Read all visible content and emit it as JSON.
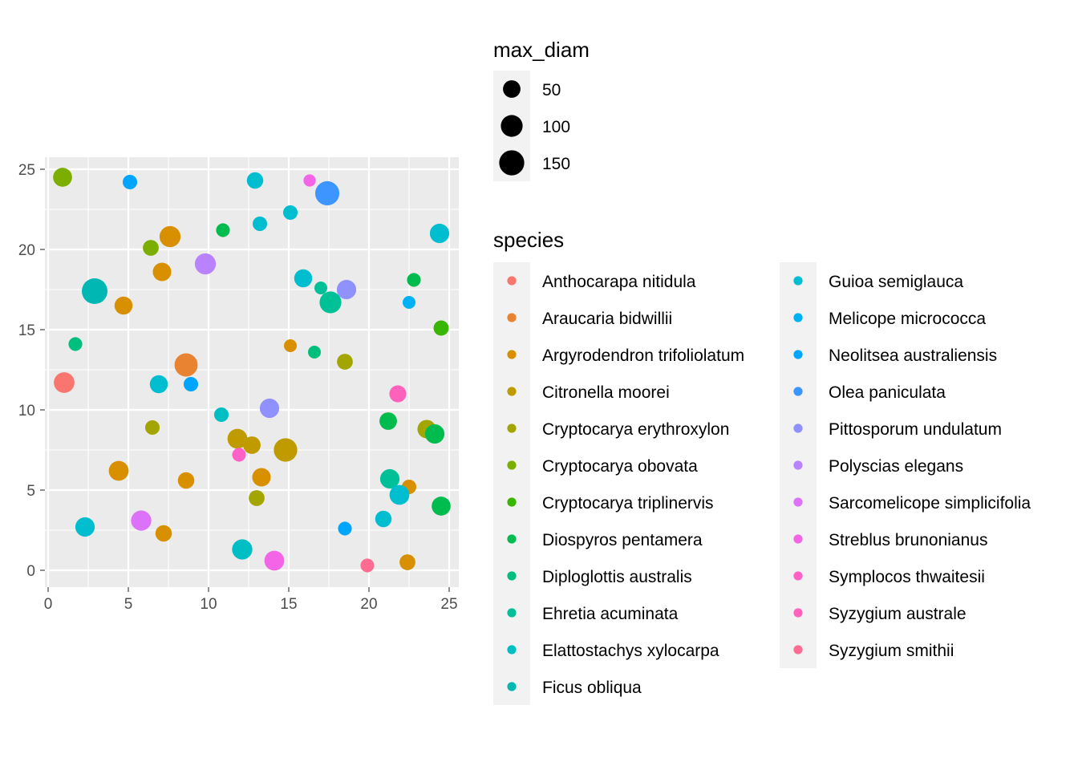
{
  "chart_data": {
    "type": "scatter",
    "xlabel": "",
    "ylabel": "",
    "xlim": [
      0,
      25
    ],
    "ylim": [
      0,
      25
    ],
    "x_ticks": [
      0,
      5,
      10,
      15,
      20,
      25
    ],
    "y_ticks": [
      0,
      5,
      10,
      15,
      20,
      25
    ],
    "grid": true,
    "size_legend": {
      "title": "max_diam",
      "breaks": [
        50,
        100,
        150
      ],
      "labels": [
        "50",
        "100",
        "150"
      ]
    },
    "color_legend": {
      "title": "species",
      "placement": "right"
    },
    "series": [
      {
        "name": "Anthocarapa nitidula",
        "color": "#F8766D",
        "points": [
          {
            "x": 1.0,
            "y": 11.7,
            "size": 85
          }
        ]
      },
      {
        "name": "Araucaria bidwillii",
        "color": "#EA8331",
        "points": [
          {
            "x": 8.6,
            "y": 12.8,
            "size": 120
          }
        ]
      },
      {
        "name": "Argyrodendron trifoliolatum",
        "color": "#D89000",
        "points": [
          {
            "x": 7.6,
            "y": 20.8,
            "size": 90
          },
          {
            "x": 7.1,
            "y": 18.6,
            "size": 60
          },
          {
            "x": 4.7,
            "y": 16.5,
            "size": 55
          },
          {
            "x": 4.4,
            "y": 6.2,
            "size": 75
          },
          {
            "x": 8.6,
            "y": 5.6,
            "size": 40
          },
          {
            "x": 7.2,
            "y": 2.3,
            "size": 40
          },
          {
            "x": 13.3,
            "y": 5.8,
            "size": 60
          },
          {
            "x": 15.1,
            "y": 14.0,
            "size": 15
          },
          {
            "x": 22.5,
            "y": 5.2,
            "size": 25
          },
          {
            "x": 22.4,
            "y": 0.5,
            "size": 35
          }
        ]
      },
      {
        "name": "Citronella moorei",
        "color": "#C09B00",
        "points": [
          {
            "x": 14.8,
            "y": 7.5,
            "size": 125
          },
          {
            "x": 11.8,
            "y": 8.2,
            "size": 75
          },
          {
            "x": 12.7,
            "y": 7.8,
            "size": 50
          }
        ]
      },
      {
        "name": "Cryptocarya erythroxylon",
        "color": "#A3A500",
        "points": [
          {
            "x": 18.5,
            "y": 13.0,
            "size": 35
          },
          {
            "x": 6.5,
            "y": 8.9,
            "size": 25
          },
          {
            "x": 13.0,
            "y": 4.5,
            "size": 35
          },
          {
            "x": 23.6,
            "y": 8.8,
            "size": 60
          }
        ]
      },
      {
        "name": "Cryptocarya obovata",
        "color": "#7CAE00",
        "points": [
          {
            "x": 0.9,
            "y": 24.5,
            "size": 65
          },
          {
            "x": 6.4,
            "y": 20.1,
            "size": 35
          }
        ]
      },
      {
        "name": "Cryptocarya triplinervis",
        "color": "#39B600",
        "points": [
          {
            "x": 24.5,
            "y": 15.1,
            "size": 30
          }
        ]
      },
      {
        "name": "Diospyros pentamera",
        "color": "#00BB4E",
        "points": [
          {
            "x": 24.1,
            "y": 8.5,
            "size": 70
          },
          {
            "x": 21.2,
            "y": 9.3,
            "size": 50
          },
          {
            "x": 24.5,
            "y": 4.0,
            "size": 65
          },
          {
            "x": 22.8,
            "y": 18.1,
            "size": 20
          },
          {
            "x": 10.9,
            "y": 21.2,
            "size": 20
          }
        ]
      },
      {
        "name": "Diploglottis australis",
        "color": "#00BF7D",
        "points": [
          {
            "x": 1.7,
            "y": 14.1,
            "size": 20
          },
          {
            "x": 16.6,
            "y": 13.6,
            "size": 15
          }
        ]
      },
      {
        "name": "Ehretia acuminata",
        "color": "#00C097",
        "points": [
          {
            "x": 17.6,
            "y": 16.7,
            "size": 100
          },
          {
            "x": 21.3,
            "y": 5.7,
            "size": 70
          },
          {
            "x": 17.0,
            "y": 17.6,
            "size": 15
          }
        ]
      },
      {
        "name": "Elattostachys xylocarpa",
        "color": "#00BFC4",
        "points": [
          {
            "x": 12.1,
            "y": 1.3,
            "size": 80
          },
          {
            "x": 10.8,
            "y": 9.7,
            "size": 25
          }
        ]
      },
      {
        "name": "Ficus obliqua",
        "color": "#00B7B4",
        "points": [
          {
            "x": 2.9,
            "y": 17.4,
            "size": 160
          }
        ]
      },
      {
        "name": "Guioa semiglauca",
        "color": "#00BDD0",
        "points": [
          {
            "x": 6.9,
            "y": 11.6,
            "size": 55
          },
          {
            "x": 2.3,
            "y": 2.7,
            "size": 70
          },
          {
            "x": 12.9,
            "y": 24.3,
            "size": 40
          },
          {
            "x": 13.2,
            "y": 21.6,
            "size": 25
          },
          {
            "x": 15.1,
            "y": 22.3,
            "size": 25
          },
          {
            "x": 15.9,
            "y": 18.2,
            "size": 55
          },
          {
            "x": 20.9,
            "y": 3.2,
            "size": 40
          },
          {
            "x": 21.9,
            "y": 4.7,
            "size": 75
          },
          {
            "x": 24.4,
            "y": 21.0,
            "size": 70
          }
        ]
      },
      {
        "name": "Melicope micrococca",
        "color": "#00B2F3",
        "points": [
          {
            "x": 22.5,
            "y": 16.7,
            "size": 15
          }
        ]
      },
      {
        "name": "Neolitsea australiensis",
        "color": "#00A5FF",
        "points": [
          {
            "x": 5.1,
            "y": 24.2,
            "size": 25
          },
          {
            "x": 8.9,
            "y": 11.6,
            "size": 25
          },
          {
            "x": 18.5,
            "y": 2.6,
            "size": 20
          }
        ]
      },
      {
        "name": "Olea paniculata",
        "color": "#3D95FF",
        "points": [
          {
            "x": 17.4,
            "y": 23.5,
            "size": 135
          }
        ]
      },
      {
        "name": "Pittosporum undulatum",
        "color": "#8F91FF",
        "points": [
          {
            "x": 13.8,
            "y": 10.1,
            "size": 70
          },
          {
            "x": 18.6,
            "y": 17.5,
            "size": 70
          }
        ]
      },
      {
        "name": "Polyscias elegans",
        "color": "#B983FF",
        "points": [
          {
            "x": 9.8,
            "y": 19.1,
            "size": 90
          }
        ]
      },
      {
        "name": "Sarcomelicope simplicifolia",
        "color": "#DC71FA",
        "points": [
          {
            "x": 5.8,
            "y": 3.1,
            "size": 80
          }
        ]
      },
      {
        "name": "Streblus brunonianus",
        "color": "#F365E6",
        "points": [
          {
            "x": 14.1,
            "y": 0.6,
            "size": 75
          },
          {
            "x": 16.3,
            "y": 24.3,
            "size": 12
          }
        ]
      },
      {
        "name": "Symplocos thwaitesii",
        "color": "#FF61C7",
        "points": [
          {
            "x": 11.9,
            "y": 7.2,
            "size": 20
          }
        ]
      },
      {
        "name": "Syzygium australe",
        "color": "#FF62BC",
        "points": [
          {
            "x": 21.8,
            "y": 11.0,
            "size": 45
          }
        ]
      },
      {
        "name": "Syzygium smithii",
        "color": "#FF6C91",
        "points": [
          {
            "x": 19.9,
            "y": 0.3,
            "size": 20
          }
        ]
      }
    ]
  }
}
